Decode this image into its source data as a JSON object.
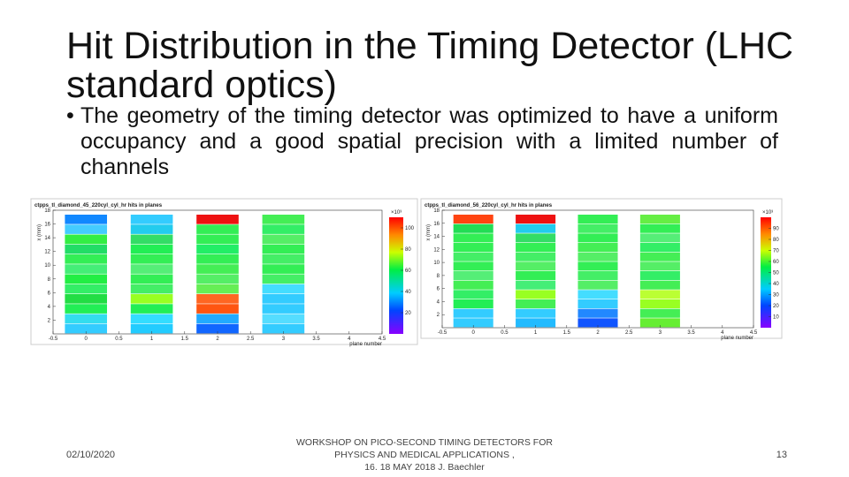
{
  "slide": {
    "title": "Hit Distribution in the Timing Detector (LHC standard optics)",
    "bullet_mark": "•",
    "bullet": "The geometry of the timing detector was optimized to have a uniform occupancy and a good spatial precision with a limited number of channels",
    "footer": {
      "date": "02/10/2020",
      "event": [
        "WORKSHOP ON PICO-SECOND TIMING DETECTORS FOR",
        "PHYSICS AND MEDICAL APPLICATIONS ,",
        "16. 18  MAY 2018 J. Baechler"
      ],
      "page": "13"
    }
  },
  "plots": [
    {
      "title": "ctpps_tl_diamond_45_220cyl_cyl_hr hits in planes",
      "y_label": "x (mm)",
      "x_label": "plane number",
      "xlim": [
        -0.5,
        4.5
      ],
      "xticks": [
        -0.5,
        0,
        0.5,
        1,
        1.5,
        2,
        2.5,
        3,
        3.5,
        4,
        4.5
      ],
      "ylim": [
        0,
        18
      ],
      "yticks": [
        2,
        4,
        6,
        8,
        10,
        12,
        14,
        16,
        18
      ],
      "zlim": [
        0,
        110
      ],
      "colorbar_ticks": [
        20,
        40,
        60,
        80,
        100
      ],
      "colorbar_exponent": "×10³"
    },
    {
      "title": "ctpps_tl_diamond_56_220cyl_cyl_hr hits in planes",
      "y_label": "x (mm)",
      "x_label": "plane number",
      "xlim": [
        -0.5,
        4.5
      ],
      "xticks": [
        -0.5,
        0,
        0.5,
        1,
        1.5,
        2,
        2.5,
        3,
        3.5,
        4,
        4.5
      ],
      "ylim": [
        0,
        18
      ],
      "yticks": [
        2,
        4,
        6,
        8,
        10,
        12,
        14,
        16,
        18
      ],
      "zlim": [
        0,
        100
      ],
      "colorbar_ticks": [
        10,
        20,
        30,
        40,
        50,
        60,
        70,
        80,
        90
      ],
      "colorbar_exponent": "×10³"
    }
  ]
}
